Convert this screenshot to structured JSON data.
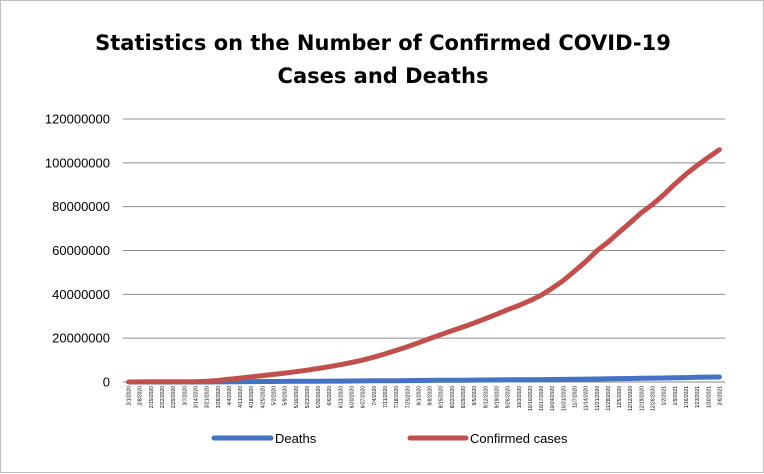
{
  "chart_data": {
    "type": "line",
    "title": "Statistics on the Number of Confirmed COVID-19 Cases and Deaths",
    "title_lines": [
      "Statistics on the Number of Confirmed COVID-19",
      "Cases and Deaths"
    ],
    "xlabel": "",
    "ylabel": "",
    "ylim": [
      0,
      120000000
    ],
    "yticks": [
      "0",
      "20000000",
      "40000000",
      "60000000",
      "80000000",
      "100000000",
      "120000000"
    ],
    "grid": true,
    "legend_position": "bottom",
    "x": [
      "2/1/2020",
      "2/8/2020",
      "2/15/2020",
      "2/22/2020",
      "2/29/2020",
      "3/7/2020",
      "3/14/2020",
      "3/21/2020",
      "3/28/2020",
      "4/4/2020",
      "4/11/2020",
      "4/18/2020",
      "4/25/2020",
      "5/2/2020",
      "5/9/2020",
      "5/16/2020",
      "5/23/2020",
      "5/30/2020",
      "6/6/2020",
      "6/13/2020",
      "6/20/2020",
      "6/27/2020",
      "7/4/2020",
      "7/11/2020",
      "7/18/2020",
      "7/25/2020",
      "8/1/2020",
      "8/8/2020",
      "8/15/2020",
      "8/22/2020",
      "8/29/2020",
      "9/5/2020",
      "9/12/2020",
      "9/19/2020",
      "9/26/2020",
      "10/3/2020",
      "10/10/2020",
      "10/17/2020",
      "10/24/2020",
      "10/31/2020",
      "11/7/2020",
      "11/14/2020",
      "11/21/2020",
      "11/28/2020",
      "12/5/2020",
      "12/12/2020",
      "12/19/2020",
      "12/26/2020",
      "1/2/2021",
      "1/9/2021",
      "1/16/2021",
      "1/23/2021",
      "1/30/2021",
      "2/6/2021"
    ],
    "series": [
      {
        "name": "Deaths",
        "color": "#4472c4",
        "values": [
          300,
          900,
          1700,
          2500,
          3000,
          3700,
          6000,
          14000,
          33000,
          69000,
          113000,
          165000,
          207000,
          244000,
          279000,
          308000,
          342000,
          371000,
          400000,
          432000,
          463000,
          498000,
          533000,
          569000,
          608000,
          648000,
          688000,
          724000,
          764000,
          801000,
          838000,
          873000,
          909000,
          946000,
          986000,
          1020000,
          1060000,
          1100000,
          1150000,
          1190000,
          1250000,
          1310000,
          1380000,
          1450000,
          1530000,
          1610000,
          1690000,
          1760000,
          1840000,
          1940000,
          2030000,
          2130000,
          2220000,
          2300000
        ]
      },
      {
        "name": "Confirmed cases",
        "color": "#c0504d",
        "values": [
          14000,
          37000,
          69000,
          79000,
          87000,
          106000,
          157000,
          339000,
          700000,
          1270000,
          1780000,
          2350000,
          2920000,
          3480000,
          4050000,
          4700000,
          5370000,
          6160000,
          7000000,
          7900000,
          8920000,
          10000000,
          11300000,
          12800000,
          14400000,
          16100000,
          17900000,
          19800000,
          21600000,
          23400000,
          25100000,
          26900000,
          28900000,
          30900000,
          33000000,
          34900000,
          37100000,
          39600000,
          42800000,
          46300000,
          50600000,
          54900000,
          59800000,
          63800000,
          68300000,
          72700000,
          77300000,
          81000000,
          85400000,
          90300000,
          94800000,
          98800000,
          102500000,
          106000000
        ]
      }
    ]
  }
}
